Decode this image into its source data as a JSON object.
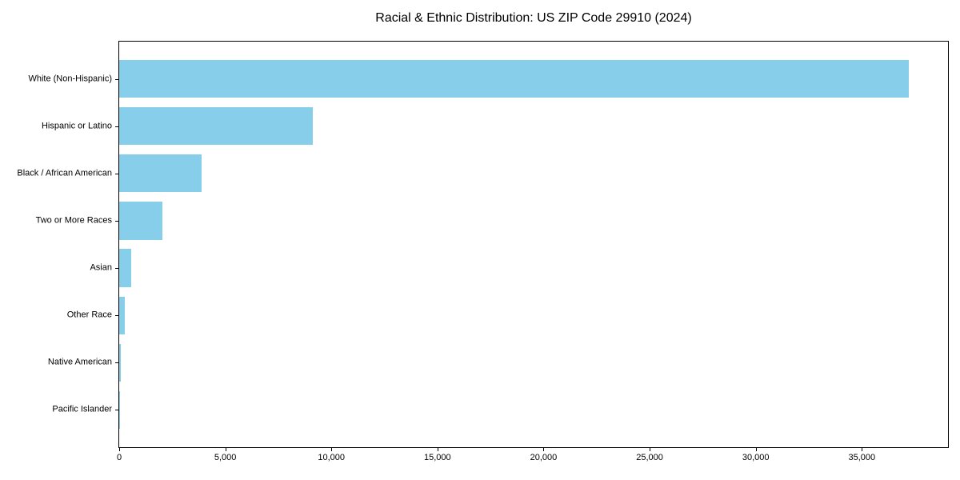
{
  "chart_data": {
    "type": "bar",
    "orientation": "horizontal",
    "title": "Racial & Ethnic Distribution: US ZIP Code 29910 (2024)",
    "categories": [
      "White (Non-Hispanic)",
      "Hispanic or Latino",
      "Black / African American",
      "Two or More Races",
      "Asian",
      "Other Race",
      "Native American",
      "Pacific Islander"
    ],
    "values": [
      37200,
      9130,
      3890,
      2050,
      565,
      280,
      60,
      25
    ],
    "xlabel": "",
    "ylabel": "",
    "xlim": [
      0,
      39060
    ],
    "xticks": [
      0,
      5000,
      10000,
      15000,
      20000,
      25000,
      30000,
      35000
    ],
    "xtick_labels": [
      "0",
      "5,000",
      "10,000",
      "15,000",
      "20,000",
      "25,000",
      "30,000",
      "35,000"
    ],
    "bar_color": "#87CEEB",
    "text_color": "#000000",
    "grid": false,
    "legend": null
  }
}
